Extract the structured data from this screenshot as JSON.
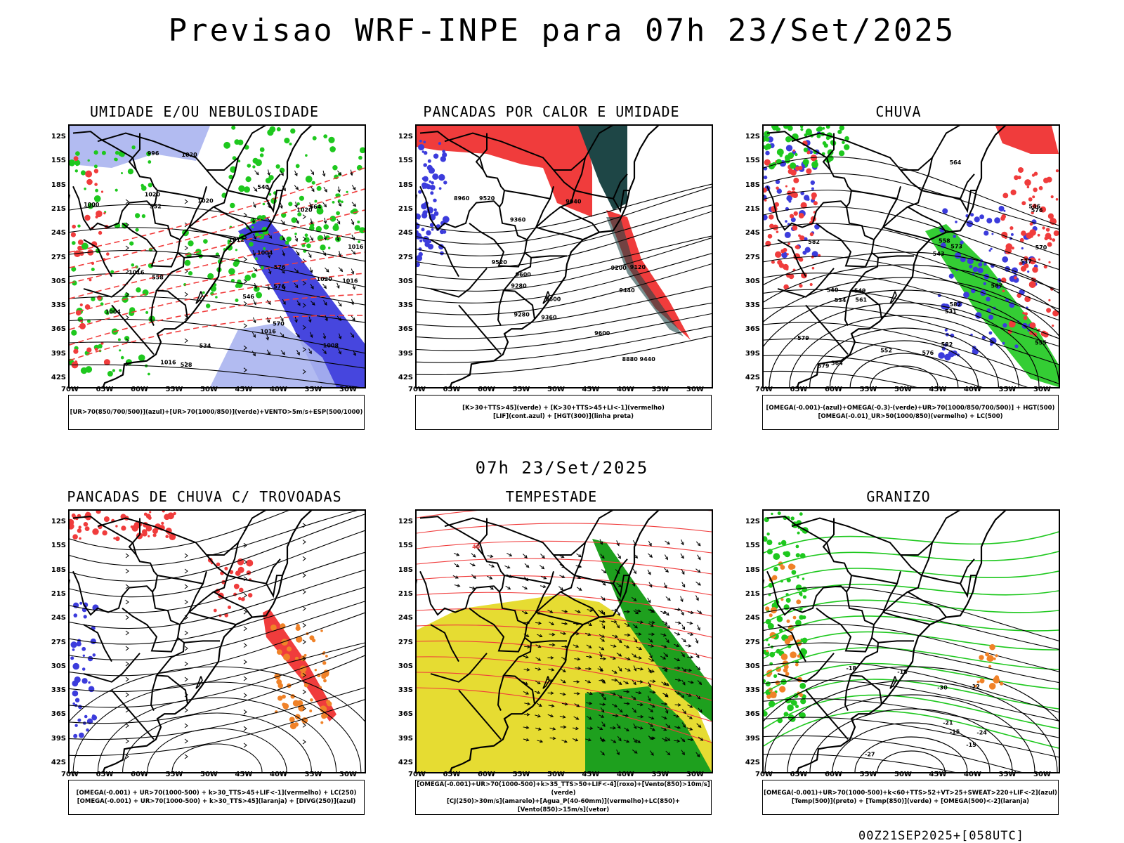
{
  "main_title": "Previsao WRF-INPE  para 07h 23/Set/2025",
  "mid_title": "07h 23/Set/2025",
  "footer_stamp": "00Z21SEP2025+[058UTC]",
  "lat_labels": [
    "12S",
    "15S",
    "18S",
    "21S",
    "24S",
    "27S",
    "30S",
    "33S",
    "36S",
    "39S",
    "42S"
  ],
  "lon_labels": [
    "70W",
    "65W",
    "60W",
    "55W",
    "50W",
    "45W",
    "40W",
    "35W",
    "30W"
  ],
  "panels": [
    {
      "title": "UMIDADE E/OU NEBULOSIDADE",
      "legend": [
        "[UR>70(850/700/500)](azul)+[UR>70(1000/850)](verde)+VENTO>5m/s+ESP(500/1000)"
      ],
      "contour_labels": [
        "1016",
        "1016",
        "1020",
        "1020",
        "1020",
        "1016",
        "1012",
        "1008",
        "1016",
        "1004",
        "1000",
        "996",
        "1004",
        "1020",
        "1020",
        "1016",
        "564",
        "570",
        "552",
        "558",
        "546",
        "540",
        "534",
        "528",
        "576",
        "576"
      ]
    },
    {
      "title": "PANCADAS POR CALOR E UMIDADE",
      "legend": [
        "[K>30+TTS>45](verde) + [K>30+TTS>45+LI<-1](vermelho)",
        "[LIF](cont.azul) + [HGT(300)](linha preta)"
      ],
      "contour_labels": [
        "9600",
        "9520",
        "9520",
        "9440",
        "9440",
        "9360",
        "9360",
        "9280",
        "9280",
        "9200",
        "9120",
        "9040",
        "8960",
        "8880",
        "9600",
        "9600"
      ]
    },
    {
      "title": "CHUVA",
      "legend": [
        "[OMEGA(-0.001)-(azul)+OMEGA(-0.3)-(verde)+UR>70(1000/850/700/500)] + HGT(500)",
        "[OMEGA(-0.01)_UR>50(1000/850)(vermelho) + LC(500)"
      ],
      "contour_labels": [
        "582",
        "579",
        "576",
        "573",
        "570",
        "567",
        "564",
        "561",
        "558",
        "555",
        "552",
        "549",
        "546",
        "543",
        "540",
        "537",
        "534",
        "531",
        "564",
        "582",
        "576",
        "579",
        "582"
      ]
    },
    {
      "title": "PANCADAS DE CHUVA C/ TROVOADAS",
      "legend": [
        "[OMEGA(-0.001) + UR>70(1000-500) + k>30_TTS>45+LIF<-1](vermelho) + LC(250)",
        "[OMEGA(-0.001) + UR>70(1000-500) + k>30_TTS>45](laranja) + [DIVG(250)](azul)"
      ],
      "contour_labels": []
    },
    {
      "title": "TEMPESTADE",
      "legend": [
        "[OMEGA(-0.001)+UR>70(1000-500)+k>35_TTS>50+LIF<-4](roxo)+[Vento(850)>10m/s](verde)",
        "[CJ(250)>30m/s](amarelo)+[Agua_P(40-60mm)](vermelho)+LC(850)+[Vento(850)>15m/s](vetor)"
      ],
      "contour_labels": [
        "40"
      ]
    },
    {
      "title": "GRANIZO",
      "legend": [
        "[OMEGA(-0.001)+UR>70(1000-500)+k<60+TTS>52+VT>25+SWEAT>220+LIF<-2](azul)",
        "[Temp(500)](preto) + [Temp(850)](verde) + [OMEGA(500)<-2](laranja)"
      ],
      "contour_labels": [
        "-18",
        "-15",
        "-12",
        "-15",
        "-18",
        "-21",
        "-24",
        "-27",
        "-30"
      ]
    }
  ],
  "colors": {
    "blue_humidity": "#3c3cdc",
    "light_blue": "#aab4f0",
    "green": "#1ec81e",
    "red": "#f03c3c",
    "orange": "#f08228",
    "yellow": "#e6dc32",
    "dark_teal": "#1e4646"
  }
}
